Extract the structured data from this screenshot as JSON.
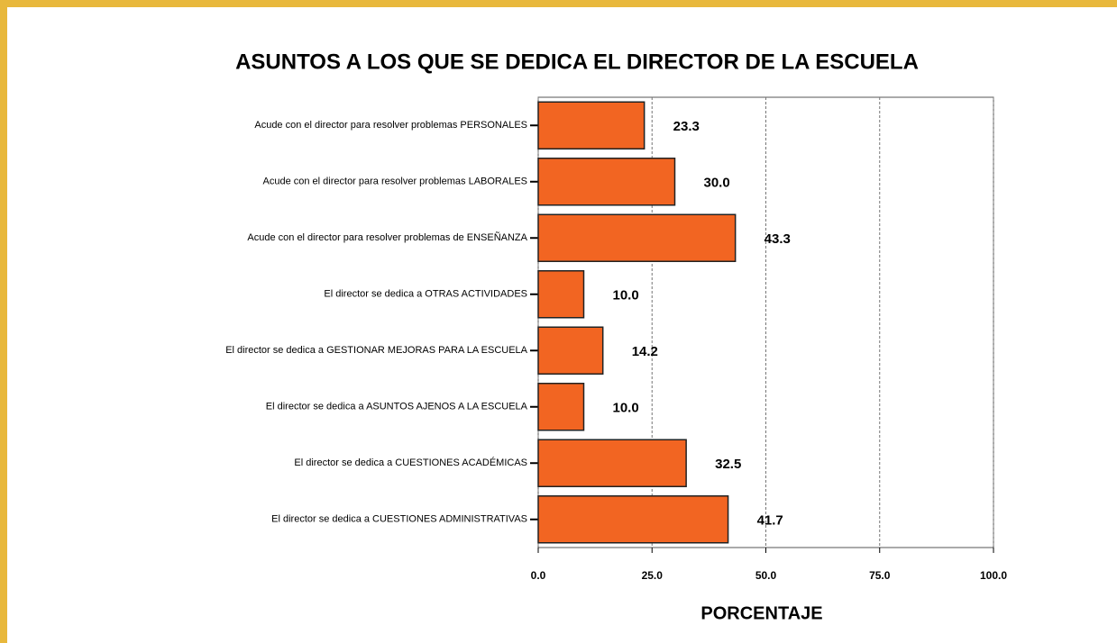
{
  "chart_data": {
    "type": "bar",
    "orientation": "horizontal",
    "title": "ASUNTOS A LOS QUE SE DEDICA EL DIRECTOR DE LA ESCUELA",
    "xlabel": "PORCENTAJE",
    "categories": [
      "Acude con el director para resolver problemas PERSONALES",
      "Acude con el director para resolver problemas LABORALES",
      "Acude con el director para resolver problemas de ENSEÑANZA",
      "El director se dedica a OTRAS ACTIVIDADES",
      "El director se dedica a GESTIONAR MEJORAS PARA LA ESCUELA",
      "El director se dedica a ASUNTOS AJENOS A LA ESCUELA",
      "El director se dedica a CUESTIONES ACADÉMICAS",
      "El director se dedica a CUESTIONES ADMINISTRATIVAS"
    ],
    "values": [
      23.3,
      30.0,
      43.3,
      10.0,
      14.2,
      10.0,
      32.5,
      41.7
    ],
    "value_labels": [
      "23.3",
      "30.0",
      "43.3",
      "10.0",
      "14.2",
      "10.0",
      "32.5",
      "41.7"
    ],
    "color": "#f26522",
    "xlim": [
      0,
      100
    ],
    "xticks": [
      {
        "value": 0,
        "label": "0.0"
      },
      {
        "value": 25,
        "label": "25.0"
      },
      {
        "value": 50,
        "label": "50.0"
      },
      {
        "value": 75,
        "label": "75.0"
      },
      {
        "value": 100,
        "label": "100.0"
      }
    ],
    "grid": true
  }
}
